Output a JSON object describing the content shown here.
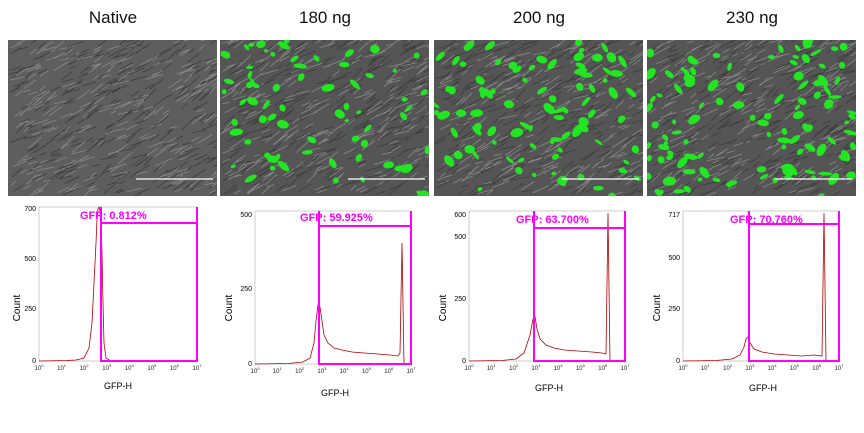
{
  "panels": [
    {
      "title": "Native",
      "gfp_positive": true,
      "gfp_label": "GFP: 0.812%",
      "ytick_top": "700",
      "ytick_mid": "500",
      "ytick_low": "250",
      "ytick_zero": "0",
      "ylabel": "Count",
      "xlabel": "GFP-H"
    },
    {
      "title": "180 ng",
      "gfp_label": "GFP: 59.925%",
      "ytick_top": "500",
      "ytick_mid": "250",
      "ytick_zero": "0",
      "ylabel": "Count",
      "xlabel": "GFP-H"
    },
    {
      "title": "200 ng",
      "gfp_label": "GFP: 63.700%",
      "ytick_top": "600",
      "ytick_mid": "500",
      "ytick_low": "250",
      "ytick_zero": "0",
      "ylabel": "Count",
      "xlabel": "GFP-H"
    },
    {
      "title": "230 ng",
      "gfp_label": "GFP: 70.760%",
      "ytick_top": "717",
      "ytick_mid": "500",
      "ytick_low": "250",
      "ytick_zero": "0",
      "ylabel": "Count",
      "xlabel": "GFP-H"
    }
  ],
  "colors": {
    "gate": "#ff00ff",
    "histogram": "#b00000",
    "gfp": "#22dd22",
    "phase": "#6b6b6b"
  }
}
